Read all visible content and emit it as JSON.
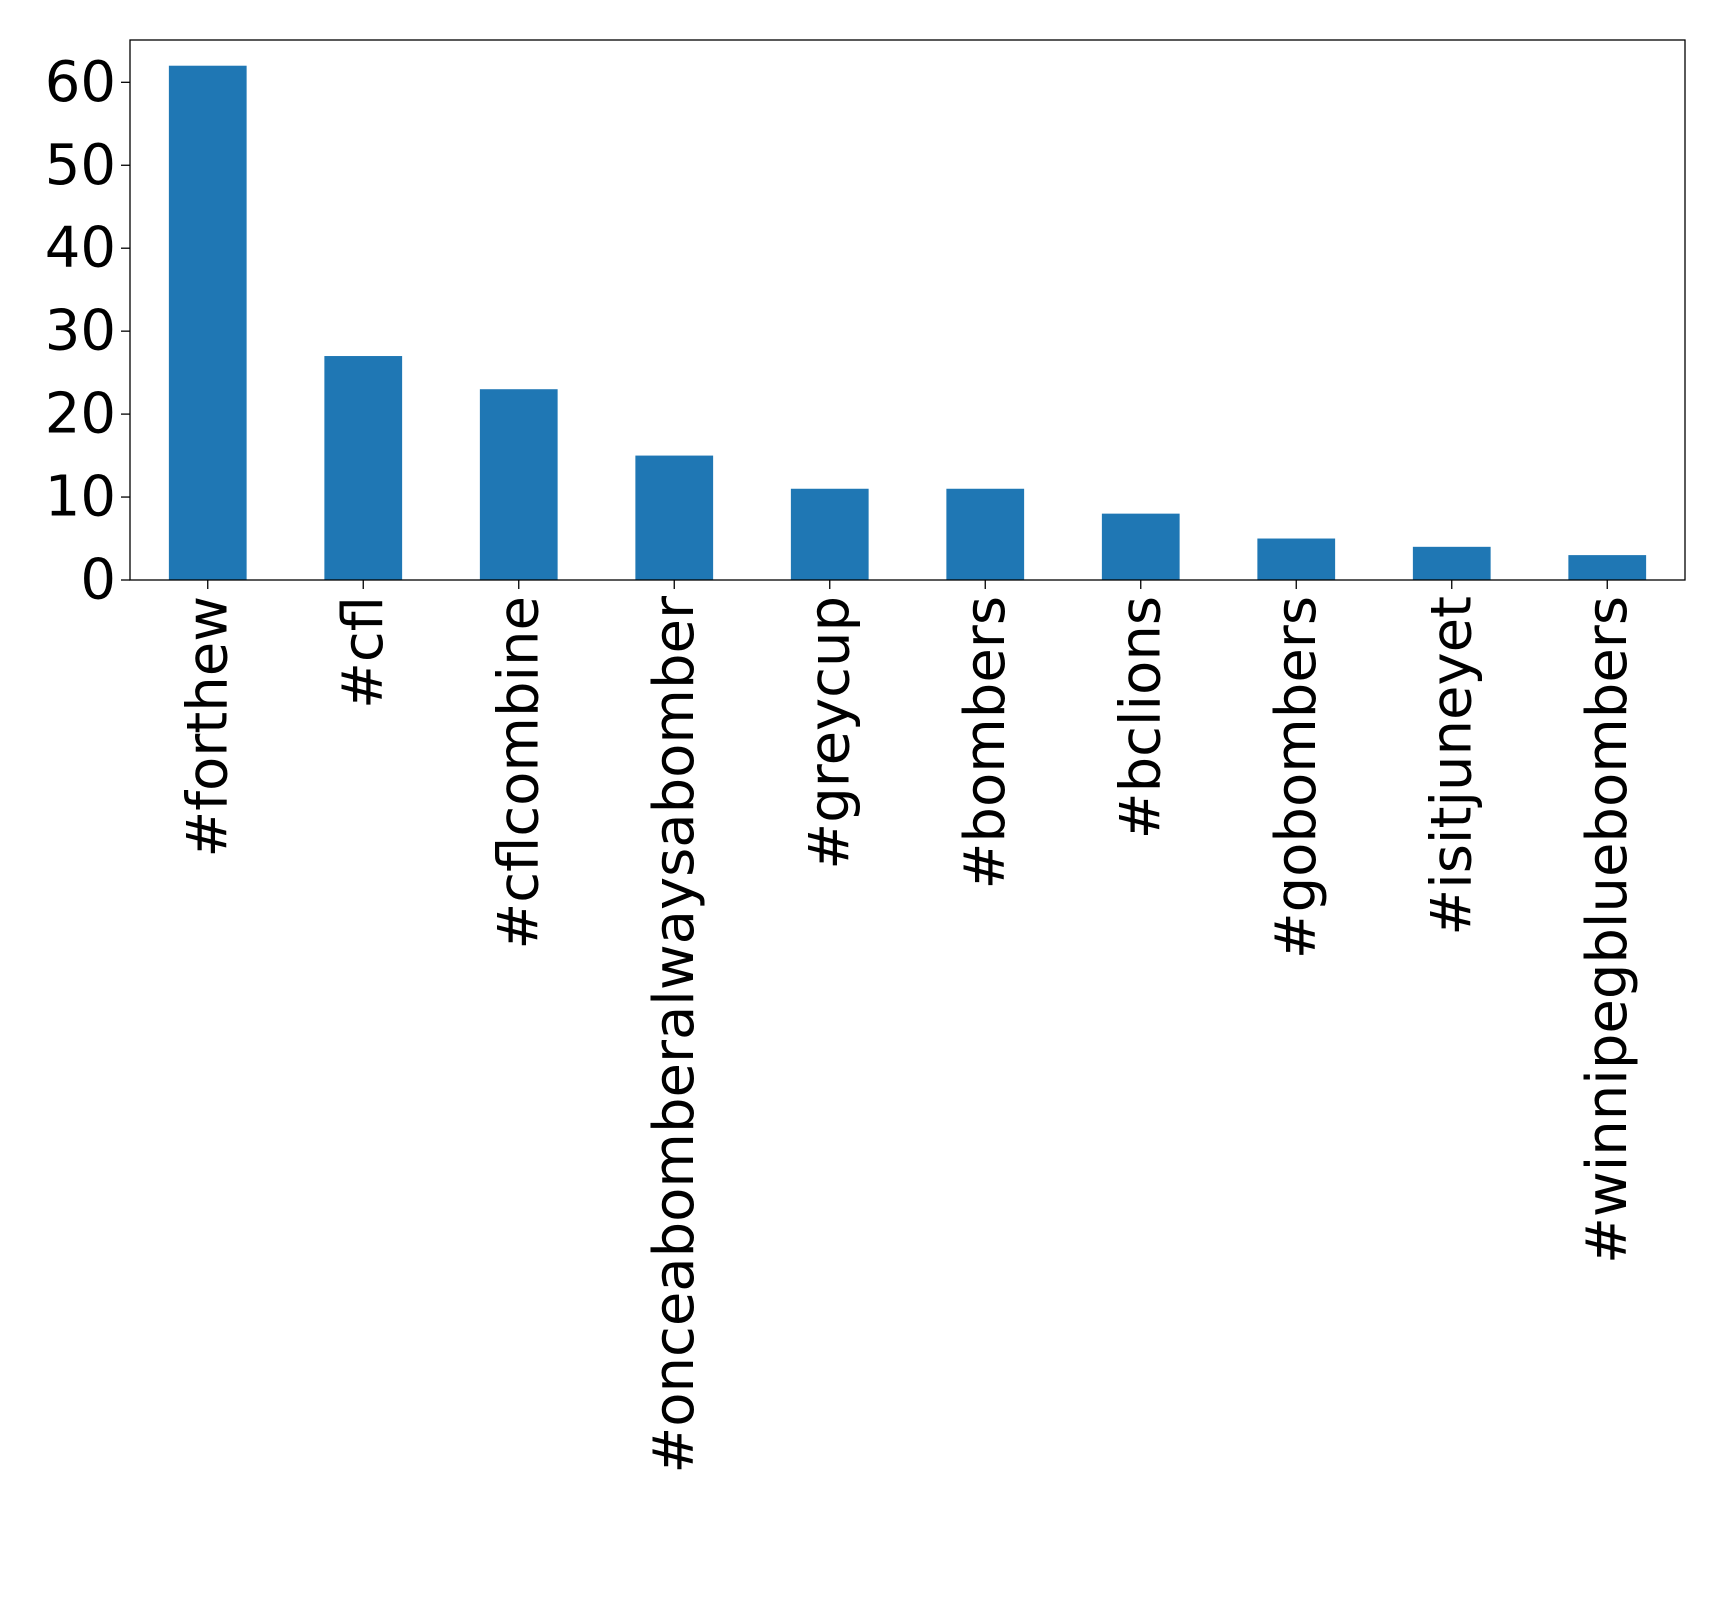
{
  "chart_data": {
    "type": "bar",
    "title": "",
    "xlabel": "",
    "ylabel": "",
    "categories": [
      "#forthew",
      "#cfl",
      "#cflcombine",
      "#onceabomberalwaysabomber",
      "#greycup",
      "#bombers",
      "#bclions",
      "#gobombers",
      "#isitjuneyet",
      "#winnipegbluebombers"
    ],
    "values": [
      62,
      27,
      23,
      15,
      11,
      11,
      8,
      5,
      4,
      3
    ],
    "ylim": [
      0,
      65.1
    ],
    "yticks": [
      0,
      10,
      20,
      30,
      40,
      50,
      60
    ],
    "ytick_labels": [
      "0",
      "10",
      "20",
      "30",
      "40",
      "50",
      "60"
    ],
    "grid": false,
    "legend": "none",
    "bar_color": "#1f77b4"
  }
}
